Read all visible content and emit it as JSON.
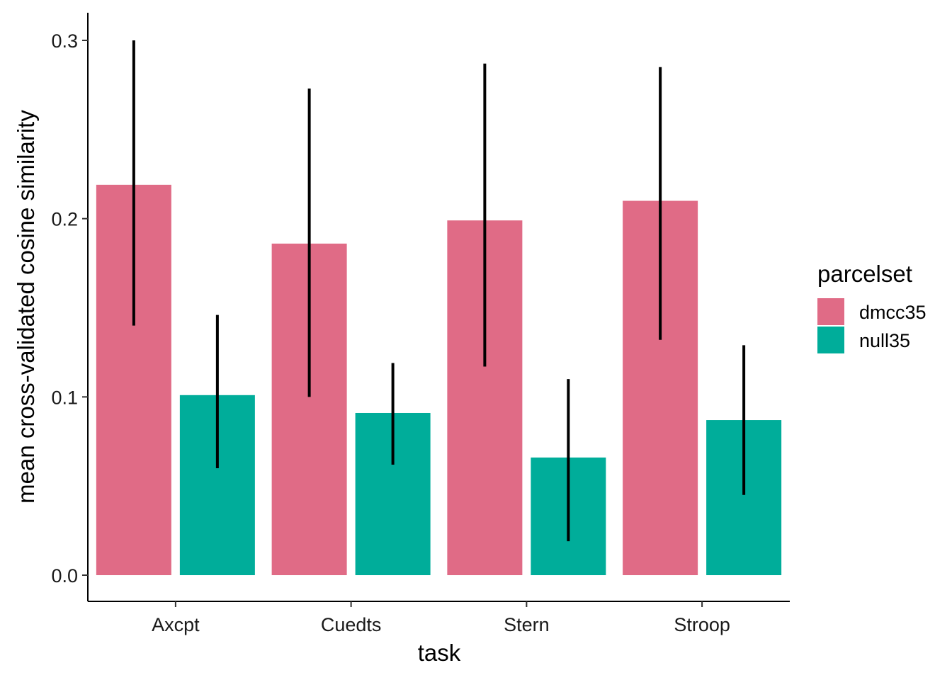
{
  "chart_data": {
    "type": "bar",
    "title": "",
    "xlabel": "task",
    "ylabel": "mean cross-validated cosine similarity",
    "categories": [
      "Axcpt",
      "Cuedts",
      "Stern",
      "Stroop"
    ],
    "series": [
      {
        "name": "dmcc35",
        "color": "#E06B86",
        "values": [
          0.219,
          0.186,
          0.199,
          0.21
        ],
        "error_low": [
          0.14,
          0.1,
          0.117,
          0.132
        ],
        "error_high": [
          0.3,
          0.273,
          0.287,
          0.285
        ]
      },
      {
        "name": "null35",
        "color": "#00AD9A",
        "values": [
          0.101,
          0.091,
          0.066,
          0.087
        ],
        "error_low": [
          0.06,
          0.062,
          0.019,
          0.045
        ],
        "error_high": [
          0.146,
          0.119,
          0.11,
          0.129
        ]
      }
    ],
    "ylim": [
      -0.015,
      0.315
    ],
    "yticks": [
      "0.0",
      "0.1",
      "0.2",
      "0.3"
    ],
    "ytick_values": [
      0.0,
      0.1,
      0.2,
      0.3
    ],
    "grid": false,
    "legend": {
      "title": "parcelset",
      "placement": "right"
    }
  }
}
